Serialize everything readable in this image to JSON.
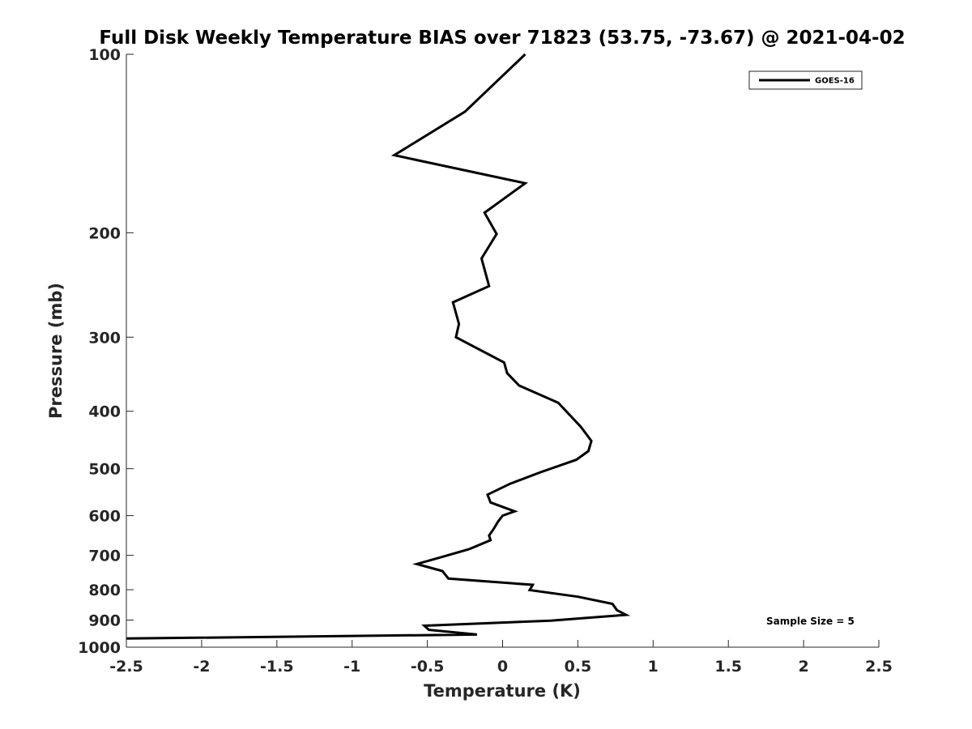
{
  "chart_data": {
    "type": "line",
    "title": "Full Disk Weekly Temperature BIAS over 71823 (53.75, -73.67) @ 2021-04-02",
    "xlabel": "Temperature (K)",
    "ylabel": "Pressure (mb)",
    "xlim": [
      -2.5,
      2.5
    ],
    "ylim": [
      100,
      1000
    ],
    "y_scale": "log",
    "y_reversed": true,
    "grid": false,
    "legend_position": "top-right",
    "x_ticks": [
      -2.5,
      -2,
      -1.5,
      -1,
      -0.5,
      0,
      0.5,
      1,
      1.5,
      2,
      2.5
    ],
    "x_tick_labels": [
      "-2.5",
      "-2",
      "-1.5",
      "-1",
      "-0.5",
      "0",
      "0.5",
      "1",
      "1.5",
      "2",
      "2.5"
    ],
    "y_ticks": [
      100,
      200,
      300,
      400,
      500,
      600,
      700,
      800,
      900,
      1000
    ],
    "y_tick_labels": [
      "100",
      "200",
      "300",
      "400",
      "500",
      "600",
      "700",
      "800",
      "900",
      "1000"
    ],
    "series": [
      {
        "name": "GOES-16",
        "color": "#000000",
        "points": [
          {
            "x": 0.15,
            "y": 100
          },
          {
            "x": -0.25,
            "y": 125
          },
          {
            "x": -0.72,
            "y": 148
          },
          {
            "x": 0.15,
            "y": 165
          },
          {
            "x": -0.12,
            "y": 185
          },
          {
            "x": -0.04,
            "y": 201
          },
          {
            "x": -0.14,
            "y": 221
          },
          {
            "x": -0.09,
            "y": 246
          },
          {
            "x": -0.33,
            "y": 262
          },
          {
            "x": -0.29,
            "y": 285
          },
          {
            "x": -0.31,
            "y": 300
          },
          {
            "x": 0.01,
            "y": 331
          },
          {
            "x": 0.03,
            "y": 345
          },
          {
            "x": 0.11,
            "y": 362
          },
          {
            "x": 0.37,
            "y": 387
          },
          {
            "x": 0.52,
            "y": 425
          },
          {
            "x": 0.59,
            "y": 449
          },
          {
            "x": 0.57,
            "y": 467
          },
          {
            "x": 0.49,
            "y": 483
          },
          {
            "x": 0.25,
            "y": 507
          },
          {
            "x": 0.05,
            "y": 530
          },
          {
            "x": -0.1,
            "y": 553
          },
          {
            "x": -0.08,
            "y": 570
          },
          {
            "x": 0.08,
            "y": 590
          },
          {
            "x": 0.0,
            "y": 600
          },
          {
            "x": -0.03,
            "y": 614
          },
          {
            "x": -0.06,
            "y": 632
          },
          {
            "x": -0.09,
            "y": 648
          },
          {
            "x": -0.08,
            "y": 660
          },
          {
            "x": -0.22,
            "y": 683
          },
          {
            "x": -0.4,
            "y": 704
          },
          {
            "x": -0.57,
            "y": 724
          },
          {
            "x": -0.4,
            "y": 744
          },
          {
            "x": -0.36,
            "y": 766
          },
          {
            "x": 0.2,
            "y": 785
          },
          {
            "x": 0.18,
            "y": 801
          },
          {
            "x": 0.5,
            "y": 822
          },
          {
            "x": 0.73,
            "y": 845
          },
          {
            "x": 0.76,
            "y": 866
          },
          {
            "x": 0.82,
            "y": 882
          },
          {
            "x": 0.32,
            "y": 902
          },
          {
            "x": -0.52,
            "y": 920
          },
          {
            "x": -0.49,
            "y": 935
          },
          {
            "x": -0.17,
            "y": 952
          },
          {
            "x": -2.5,
            "y": 967
          }
        ]
      }
    ],
    "annotations": [
      {
        "text": "Sample Size = 5",
        "x": 2.05,
        "y": 900
      }
    ]
  }
}
